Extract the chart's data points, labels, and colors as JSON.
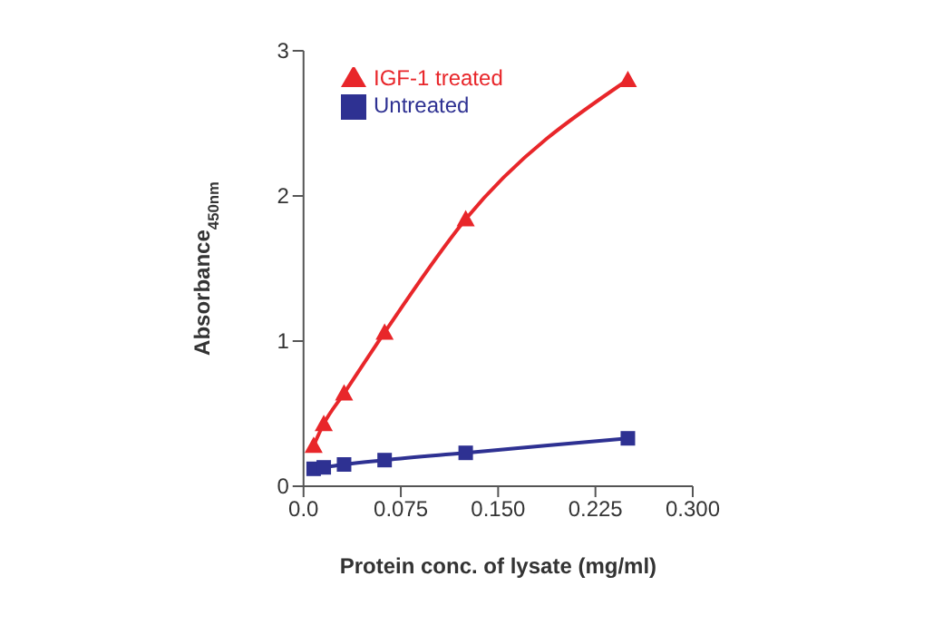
{
  "chart_data": {
    "type": "line",
    "xlabel": "Protein conc. of lysate (mg/ml)",
    "ylabel": "Absorbance$_{450nm}$",
    "xlim": [
      0,
      0.3
    ],
    "xticks": [
      {
        "value": 0,
        "label": "0.0"
      },
      {
        "value": 0.075,
        "label": "0.075"
      },
      {
        "value": 0.15,
        "label": "0.150"
      },
      {
        "value": 0.225,
        "label": "0.225"
      },
      {
        "value": 0.3,
        "label": "0.300"
      }
    ],
    "ylim": [
      0,
      3
    ],
    "yticks": [
      0,
      1,
      2,
      3
    ],
    "legend": "top left",
    "series": [
      {
        "name": "IGF-1 treated",
        "color": "#e8262a",
        "marker": "triangle",
        "x": [
          0.0078,
          0.0156,
          0.03125,
          0.0625,
          0.125,
          0.25
        ],
        "values": [
          0.28,
          0.43,
          0.64,
          1.06,
          1.84,
          2.8
        ]
      },
      {
        "name": "Untreated",
        "color": "#2e3192",
        "marker": "square",
        "x": [
          0.0078,
          0.0156,
          0.03125,
          0.0625,
          0.125,
          0.25
        ],
        "values": [
          0.12,
          0.13,
          0.15,
          0.18,
          0.23,
          0.33
        ]
      }
    ]
  }
}
